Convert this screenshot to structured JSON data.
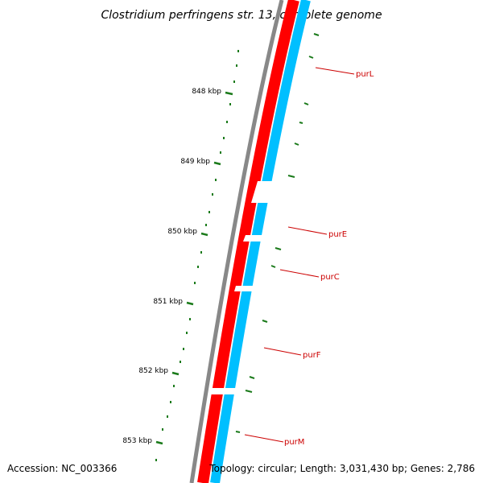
{
  "title": "Clostridium perfringens str. 13, complete genome",
  "footer": {
    "accession": "Accession: NC_003366",
    "topology": "Topology: circular; Length: 3,031,430 bp; Genes: 2,786"
  },
  "ticks": [
    "848 kbp",
    "849 kbp",
    "850 kbp",
    "851 kbp",
    "852 kbp",
    "853 kbp"
  ],
  "genes": [
    "purL",
    "purE",
    "purC",
    "purF",
    "purM"
  ],
  "colors": {
    "backbone": "#888888",
    "forward_strand": "#ff0000",
    "reverse_strand": "#00bfff",
    "gene_label": "#cc0000",
    "gc_plot": "#1a7a1a"
  }
}
